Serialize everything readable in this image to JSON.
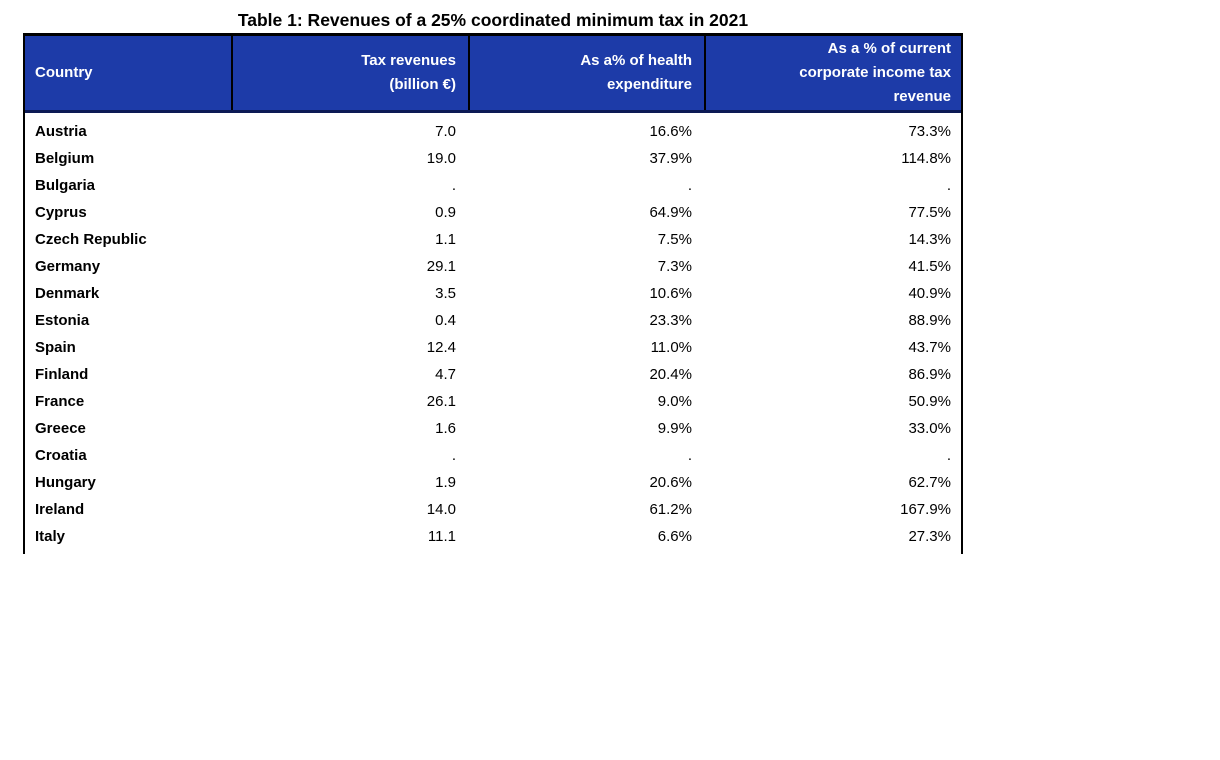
{
  "page": {
    "title": "Table 1: Revenues of a 25% coordinated minimum tax in 2021"
  },
  "table": {
    "columns": [
      "Country",
      "Tax revenues\n(billion €)",
      "As a% of health\nexpenditure",
      "As a % of current\ncorporate income tax\nrevenue"
    ],
    "rows": [
      {
        "country": "Austria",
        "revenue": "7.0",
        "health": "16.6%",
        "cit": "73.3%"
      },
      {
        "country": "Belgium",
        "revenue": "19.0",
        "health": "37.9%",
        "cit": "114.8%"
      },
      {
        "country": "Bulgaria",
        "revenue": ".",
        "health": ".",
        "cit": "."
      },
      {
        "country": "Cyprus",
        "revenue": "0.9",
        "health": "64.9%",
        "cit": "77.5%"
      },
      {
        "country": "Czech Republic",
        "revenue": "1.1",
        "health": "7.5%",
        "cit": "14.3%"
      },
      {
        "country": "Germany",
        "revenue": "29.1",
        "health": "7.3%",
        "cit": "41.5%"
      },
      {
        "country": "Denmark",
        "revenue": "3.5",
        "health": "10.6%",
        "cit": "40.9%"
      },
      {
        "country": "Estonia",
        "revenue": "0.4",
        "health": "23.3%",
        "cit": "88.9%"
      },
      {
        "country": "Spain",
        "revenue": "12.4",
        "health": "11.0%",
        "cit": "43.7%"
      },
      {
        "country": "Finland",
        "revenue": "4.7",
        "health": "20.4%",
        "cit": "86.9%"
      },
      {
        "country": "France",
        "revenue": "26.1",
        "health": "9.0%",
        "cit": "50.9%"
      },
      {
        "country": "Greece",
        "revenue": "1.6",
        "health": "9.9%",
        "cit": "33.0%"
      },
      {
        "country": "Croatia",
        "revenue": ".",
        "health": ".",
        "cit": "."
      },
      {
        "country": "Hungary",
        "revenue": "1.9",
        "health": "20.6%",
        "cit": "62.7%"
      },
      {
        "country": "Ireland",
        "revenue": "14.0",
        "health": "61.2%",
        "cit": "167.9%"
      },
      {
        "country": "Italy",
        "revenue": "11.1",
        "health": "6.6%",
        "cit": "27.3%"
      }
    ]
  },
  "colors": {
    "header_bg": "#1d3ba8",
    "header_text": "#ffffff",
    "header_underline": "#0c1a55",
    "border": "#000000",
    "text": "#000000",
    "page_bg": "#ffffff"
  }
}
